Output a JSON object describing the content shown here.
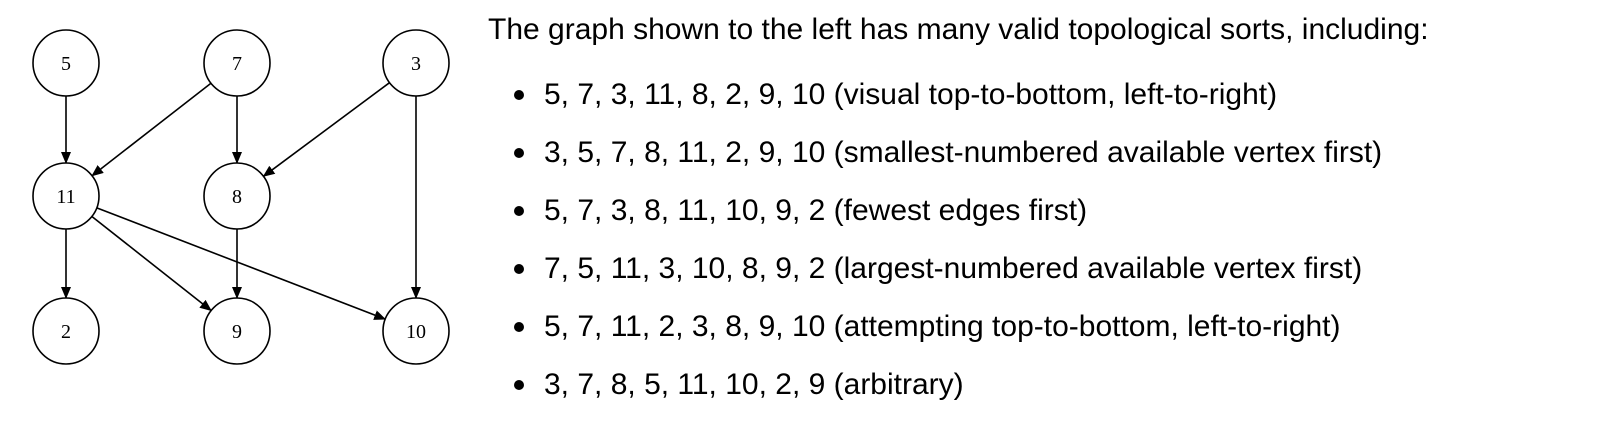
{
  "graph": {
    "nodes": [
      {
        "id": "5",
        "label": "5"
      },
      {
        "id": "7",
        "label": "7"
      },
      {
        "id": "3",
        "label": "3"
      },
      {
        "id": "11",
        "label": "11"
      },
      {
        "id": "8",
        "label": "8"
      },
      {
        "id": "2",
        "label": "2"
      },
      {
        "id": "9",
        "label": "9"
      },
      {
        "id": "10",
        "label": "10"
      }
    ],
    "edges": [
      {
        "from": "5",
        "to": "11"
      },
      {
        "from": "7",
        "to": "11"
      },
      {
        "from": "7",
        "to": "8"
      },
      {
        "from": "3",
        "to": "8"
      },
      {
        "from": "3",
        "to": "10"
      },
      {
        "from": "11",
        "to": "2"
      },
      {
        "from": "11",
        "to": "9"
      },
      {
        "from": "11",
        "to": "10"
      },
      {
        "from": "8",
        "to": "9"
      }
    ]
  },
  "text": {
    "intro": "The graph shown to the left has many valid topological sorts, including:",
    "sorts": [
      "5, 7, 3, 11, 8, 2, 9, 10 (visual top-to-bottom, left-to-right)",
      "3, 5, 7, 8, 11, 2, 9, 10 (smallest-numbered available vertex first)",
      "5, 7, 3, 8, 11, 10, 9, 2 (fewest edges first)",
      "7, 5, 11, 3, 10, 8, 9, 2 (largest-numbered available vertex first)",
      "5, 7, 11, 2, 3, 8, 9, 10 (attempting top-to-bottom, left-to-right)",
      "3, 7, 8, 5, 11, 10, 2, 9 (arbitrary)"
    ]
  }
}
